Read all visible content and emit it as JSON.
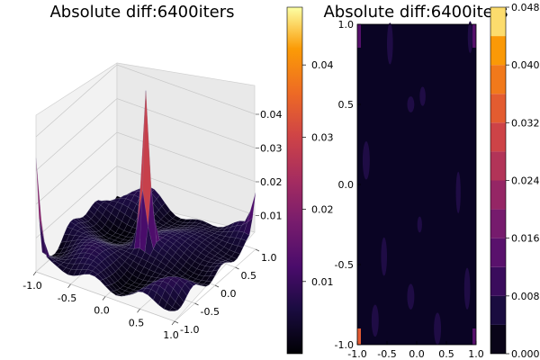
{
  "chart_data": [
    {
      "type": "surface",
      "title": "Absolute diff:6400iters",
      "x_ticks": [
        "-1.0",
        "-0.5",
        "0.0",
        "0.5",
        "1.0"
      ],
      "y_ticks": [
        "-1.0",
        "-0.5",
        "0.0",
        "0.5",
        "1.0"
      ],
      "z_ticks": [
        "0.01",
        "0.02",
        "0.03",
        "0.04"
      ],
      "xlim": [
        -1,
        1
      ],
      "ylim": [
        -1,
        1
      ],
      "zlim": [
        0,
        0.048
      ],
      "surface_peaks": [
        {
          "x": -1.0,
          "y": -1.0,
          "z": 0.03
        },
        {
          "x": 0.0,
          "y": 0.0,
          "z": 0.045
        },
        {
          "x": 1.0,
          "y": 1.0,
          "z": 0.012
        }
      ],
      "colorbar": {
        "colormap": "inferno",
        "range": [
          0,
          0.048
        ],
        "ticks": [
          "0.01",
          "0.02",
          "0.03",
          "0.04"
        ]
      }
    },
    {
      "type": "contour",
      "title": "Absolute diff:6400iters",
      "x_ticks": [
        "-1.0",
        "-0.5",
        "0.0",
        "0.5",
        "1.0"
      ],
      "y_ticks": [
        "-1.0",
        "-0.5",
        "0.0",
        "0.5",
        "1.0"
      ],
      "xlim": [
        -1,
        1
      ],
      "ylim": [
        -1,
        1
      ],
      "colorbar": {
        "colormap": "inferno",
        "levels": [
          0,
          0.004,
          0.008,
          0.012,
          0.016,
          0.02,
          0.024,
          0.028,
          0.032,
          0.036,
          0.04,
          0.044,
          0.048
        ],
        "ticks": [
          "0.000",
          "0.008",
          "0.016",
          "0.024",
          "0.032",
          "0.040",
          "0.048"
        ]
      }
    }
  ]
}
